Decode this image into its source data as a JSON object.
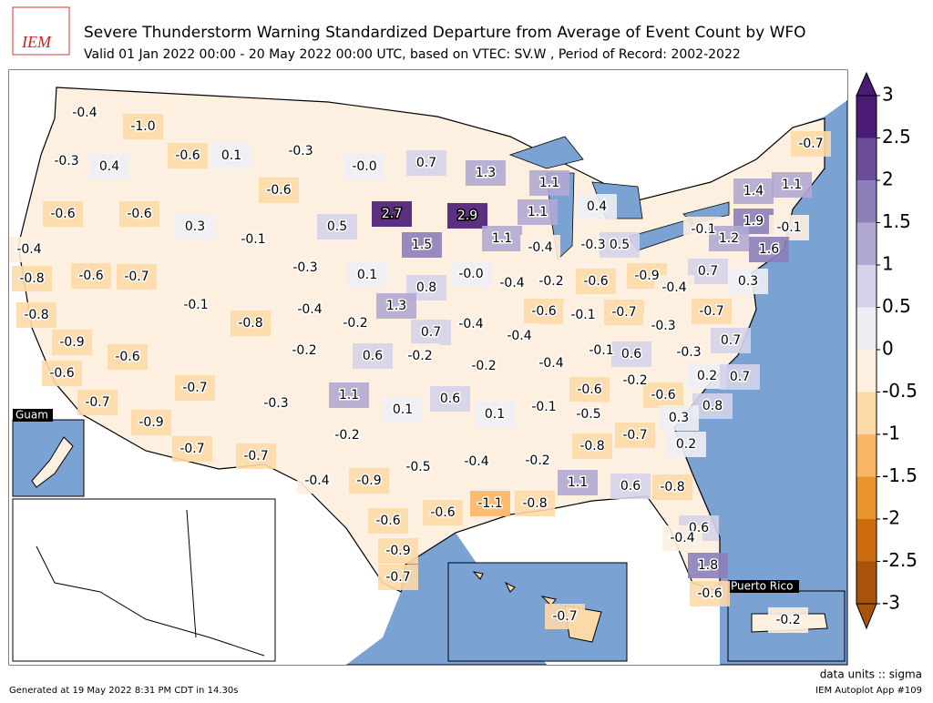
{
  "header": {
    "logo": "IEM",
    "title": "Severe Thunderstorm Warning Standardized Departure from Average of Event Count by WFO",
    "subtitle": "Valid 01 Jan 2022 00:00 - 20 May 2022 00:00 UTC, based on VTEC: SV.W  , Period of Record: 2002-2022"
  },
  "map": {
    "insets": {
      "guam": "Guam",
      "puerto_rico": "Puerto Rico"
    },
    "value_labels": [
      "-0.4",
      "-1.0",
      "-0.3",
      "0.4",
      "-0.6",
      "0.1",
      "-0.3",
      "-0.0",
      "0.7",
      "1.3",
      "1.1",
      "-0.7",
      "-0.6",
      "-0.6",
      "0.3",
      "-0.6",
      "-0.1",
      "0.5",
      "2.7",
      "2.9",
      "1.1",
      "0.4",
      "1.4",
      "1.1",
      "-0.4",
      "1.5",
      "1.1",
      "-0.4",
      "-0.3",
      "0.5",
      "-0.1",
      "1.9",
      "-0.1",
      "1.2",
      "1.6",
      "-0.8",
      "-0.6",
      "-0.7",
      "-0.3",
      "0.1",
      "-0.0",
      "0.8",
      "-0.4",
      "-0.2",
      "-0.6",
      "-0.9",
      "0.7",
      "-0.4",
      "0.3",
      "-0.8",
      "-0.1",
      "-0.8",
      "-0.4",
      "1.3",
      "-0.6",
      "-0.1",
      "-0.7",
      "-0.7",
      "-0.2",
      "0.7",
      "-0.4",
      "-0.3",
      "-0.9",
      "-0.2",
      "-0.4",
      "-0.1",
      "0.6",
      "-0.3",
      "0.7",
      "-0.6",
      "0.6",
      "-0.2",
      "-0.2",
      "-0.4",
      "0.2",
      "0.7",
      "-0.6",
      "-0.7",
      "-0.7",
      "1.1",
      "-0.3",
      "0.6",
      "-0.2",
      "-0.6",
      "-0.6",
      "0.1",
      "0.1",
      "-0.1",
      "-0.5",
      "0.8",
      "-0.9",
      "0.3",
      "-0.2",
      "-0.8",
      "-0.7",
      "0.2",
      "-0.7",
      "-0.7",
      "-0.4",
      "-0.9",
      "-0.5",
      "-0.4",
      "-0.2",
      "1.1",
      "0.6",
      "-0.8",
      "-1.1",
      "-0.8",
      "-0.6",
      "-0.6",
      "0.6",
      "-0.4",
      "-0.9",
      "1.8",
      "-0.7",
      "-0.6",
      "-0.7",
      "-0.2"
    ],
    "values": [
      -0.4,
      -1.0,
      -0.3,
      0.4,
      -0.6,
      0.1,
      -0.3,
      0,
      0.7,
      1.3,
      1.1,
      -0.7,
      -0.6,
      -0.6,
      0.3,
      -0.6,
      -0.1,
      0.5,
      2.7,
      2.9,
      1.1,
      0.4,
      1.4,
      1.1,
      -0.4,
      1.5,
      1.1,
      -0.4,
      -0.3,
      0.5,
      -0.1,
      1.9,
      -0.1,
      1.2,
      1.6,
      -0.8,
      -0.6,
      -0.7,
      -0.3,
      0.1,
      0,
      0.8,
      -0.4,
      -0.2,
      -0.6,
      -0.9,
      0.7,
      -0.4,
      0.3,
      -0.8,
      -0.1,
      -0.8,
      -0.4,
      1.3,
      -0.6,
      -0.1,
      -0.7,
      -0.7,
      -0.2,
      0.7,
      -0.4,
      -0.3,
      -0.9,
      -0.2,
      -0.4,
      -0.1,
      0.6,
      -0.3,
      0.7,
      -0.6,
      0.6,
      -0.2,
      -0.2,
      -0.4,
      0.2,
      0.7,
      -0.6,
      -0.7,
      -0.7,
      1.1,
      -0.3,
      0.6,
      -0.2,
      -0.6,
      -0.6,
      0.1,
      0.1,
      -0.1,
      -0.5,
      0.8,
      -0.9,
      0.3,
      -0.2,
      -0.8,
      -0.7,
      0.2,
      -0.7,
      -0.7,
      -0.4,
      -0.9,
      -0.5,
      -0.4,
      -0.2,
      1.1,
      0.6,
      -0.8,
      -1.1,
      -0.8,
      -0.6,
      -0.6,
      0.6,
      -0.4,
      -0.9,
      1.8,
      -0.7,
      -0.6,
      -0.7,
      -0.2
    ]
  },
  "colorbar": {
    "ticks": [
      3,
      2.5,
      2,
      1.5,
      1,
      0.5,
      0,
      -0.5,
      -1,
      -1.5,
      -2,
      -2.5,
      -3
    ],
    "colors": [
      "#4b1a75",
      "#6a4c9b",
      "#8c7fba",
      "#b1a9d3",
      "#d4d3e9",
      "#eeeef5",
      "#fdf0e0",
      "#fdd9a8",
      "#fbb665",
      "#ea922c",
      "#cd6b0f",
      "#a8520c"
    ]
  },
  "footer": {
    "generated": "Generated at 19 May 2022 8:31 PM CDT in 14.30s",
    "units": "data units :: sigma",
    "app": "IEM Autoplot App #109"
  }
}
